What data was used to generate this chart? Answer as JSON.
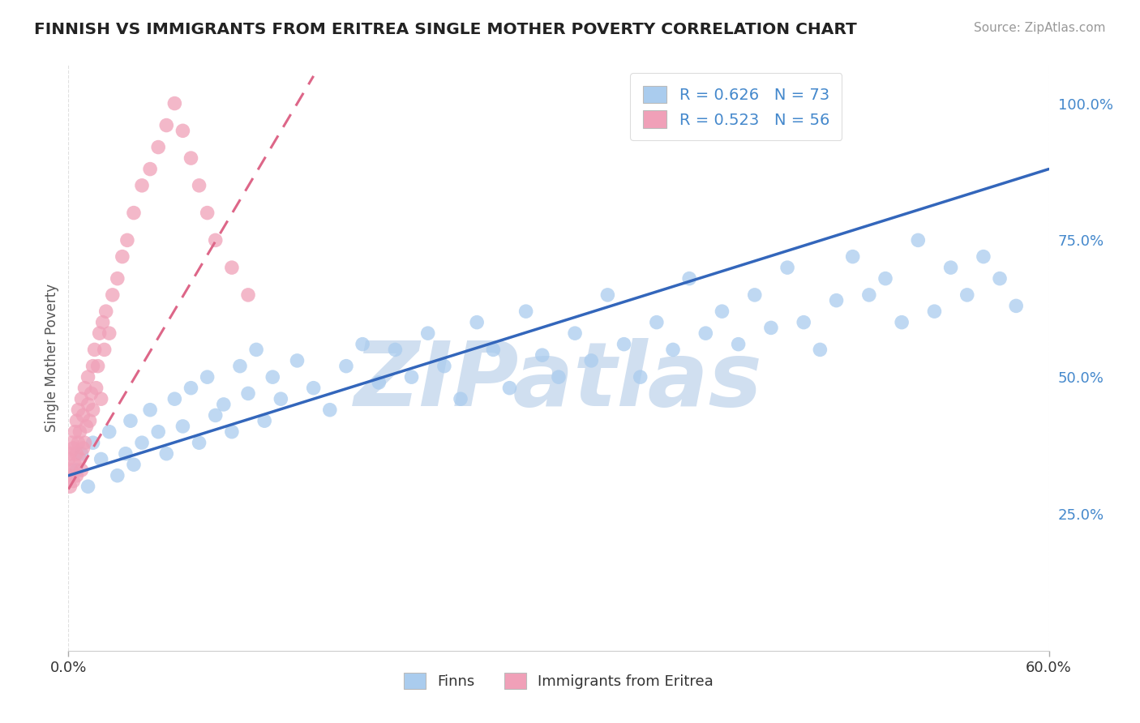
{
  "title": "FINNISH VS IMMIGRANTS FROM ERITREA SINGLE MOTHER POVERTY CORRELATION CHART",
  "source": "Source: ZipAtlas.com",
  "ylabel": "Single Mother Poverty",
  "legend_R_finns": "R = 0.626",
  "legend_N_finns": "N = 73",
  "legend_R_eritrea": "R = 0.523",
  "legend_N_eritrea": "N = 56",
  "legend_label_finns": "Finns",
  "legend_label_eritrea": "Immigrants from Eritrea",
  "watermark": "ZIPatlas",
  "finns_color": "#aaccee",
  "eritrea_color": "#f0a0b8",
  "finns_line_color": "#3366bb",
  "eritrea_line_color": "#dd6688",
  "background_color": "#ffffff",
  "grid_color": "#dddddd",
  "title_color": "#222222",
  "watermark_color": "#d0dff0",
  "tick_color": "#4488cc",
  "xmin": 0.0,
  "xmax": 0.6,
  "ymin": 0.0,
  "ymax": 1.07,
  "y_ticks": [
    0.25,
    0.5,
    0.75,
    1.0
  ],
  "y_tick_labels": [
    "25.0%",
    "50.0%",
    "75.0%",
    "100.0%"
  ],
  "x_ticks": [
    0.0,
    0.6
  ],
  "x_tick_labels": [
    "0.0%",
    "60.0%"
  ],
  "finns_x": [
    0.005,
    0.008,
    0.012,
    0.015,
    0.02,
    0.025,
    0.03,
    0.035,
    0.038,
    0.04,
    0.045,
    0.05,
    0.055,
    0.06,
    0.065,
    0.07,
    0.075,
    0.08,
    0.085,
    0.09,
    0.095,
    0.1,
    0.105,
    0.11,
    0.115,
    0.12,
    0.125,
    0.13,
    0.14,
    0.15,
    0.16,
    0.17,
    0.18,
    0.19,
    0.2,
    0.21,
    0.22,
    0.23,
    0.24,
    0.25,
    0.26,
    0.27,
    0.28,
    0.29,
    0.3,
    0.31,
    0.32,
    0.33,
    0.34,
    0.35,
    0.36,
    0.37,
    0.38,
    0.39,
    0.4,
    0.41,
    0.42,
    0.43,
    0.44,
    0.45,
    0.46,
    0.47,
    0.48,
    0.49,
    0.5,
    0.51,
    0.52,
    0.53,
    0.54,
    0.55,
    0.56,
    0.57,
    0.58
  ],
  "finns_y": [
    0.33,
    0.36,
    0.3,
    0.38,
    0.35,
    0.4,
    0.32,
    0.36,
    0.42,
    0.34,
    0.38,
    0.44,
    0.4,
    0.36,
    0.46,
    0.41,
    0.48,
    0.38,
    0.5,
    0.43,
    0.45,
    0.4,
    0.52,
    0.47,
    0.55,
    0.42,
    0.5,
    0.46,
    0.53,
    0.48,
    0.44,
    0.52,
    0.56,
    0.49,
    0.55,
    0.5,
    0.58,
    0.52,
    0.46,
    0.6,
    0.55,
    0.48,
    0.62,
    0.54,
    0.5,
    0.58,
    0.53,
    0.65,
    0.56,
    0.5,
    0.6,
    0.55,
    0.68,
    0.58,
    0.62,
    0.56,
    0.65,
    0.59,
    0.7,
    0.6,
    0.55,
    0.64,
    0.72,
    0.65,
    0.68,
    0.6,
    0.75,
    0.62,
    0.7,
    0.65,
    0.72,
    0.68,
    0.63
  ],
  "eritrea_x": [
    0.0,
    0.0,
    0.001,
    0.001,
    0.002,
    0.002,
    0.003,
    0.003,
    0.004,
    0.004,
    0.005,
    0.005,
    0.005,
    0.006,
    0.006,
    0.007,
    0.007,
    0.008,
    0.008,
    0.009,
    0.009,
    0.01,
    0.01,
    0.011,
    0.012,
    0.012,
    0.013,
    0.014,
    0.015,
    0.015,
    0.016,
    0.017,
    0.018,
    0.019,
    0.02,
    0.021,
    0.022,
    0.023,
    0.025,
    0.027,
    0.03,
    0.033,
    0.036,
    0.04,
    0.045,
    0.05,
    0.055,
    0.06,
    0.065,
    0.07,
    0.075,
    0.08,
    0.085,
    0.09,
    0.1,
    0.11
  ],
  "eritrea_y": [
    0.32,
    0.35,
    0.3,
    0.36,
    0.33,
    0.38,
    0.31,
    0.37,
    0.34,
    0.4,
    0.32,
    0.36,
    0.42,
    0.38,
    0.44,
    0.35,
    0.4,
    0.33,
    0.46,
    0.37,
    0.43,
    0.38,
    0.48,
    0.41,
    0.45,
    0.5,
    0.42,
    0.47,
    0.52,
    0.44,
    0.55,
    0.48,
    0.52,
    0.58,
    0.46,
    0.6,
    0.55,
    0.62,
    0.58,
    0.65,
    0.68,
    0.72,
    0.75,
    0.8,
    0.85,
    0.88,
    0.92,
    0.96,
    1.0,
    0.95,
    0.9,
    0.85,
    0.8,
    0.75,
    0.7,
    0.65
  ],
  "finns_trendline_x": [
    0.0,
    0.6
  ],
  "finns_trendline_y": [
    0.32,
    0.88
  ],
  "eritrea_trendline_x": [
    0.0,
    0.15
  ],
  "eritrea_trendline_y": [
    0.295,
    1.05
  ]
}
